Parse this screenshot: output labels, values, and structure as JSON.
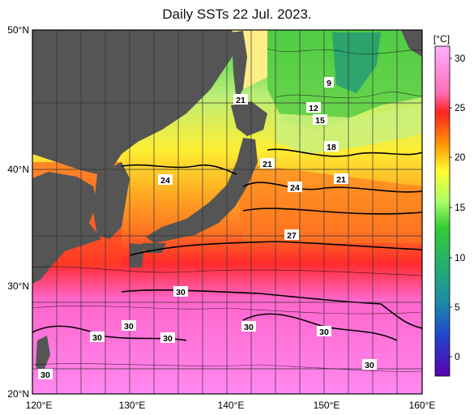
{
  "title": "Daily SSTs 22 Jul. 2023.",
  "colorbar": {
    "unit": "[°C]",
    "ticks": [
      "30",
      "25",
      "20",
      "15",
      "10",
      "5",
      "0"
    ],
    "stops": [
      "#ff9cff",
      "#ff3333",
      "#ff8800",
      "#ffff00",
      "#33cc33",
      "#33aaaa",
      "#3333cc",
      "#5500aa"
    ]
  },
  "axes": {
    "lat_ticks": [
      "50°N",
      "40°N",
      "30°N",
      "20°N"
    ],
    "lon_ticks": [
      "120°E",
      "130°E",
      "140°E",
      "150°E",
      "160°E"
    ]
  },
  "contour_labels": [
    "9",
    "12",
    "15",
    "18",
    "21",
    "21",
    "21",
    "24",
    "24",
    "27",
    "30",
    "30",
    "30",
    "30",
    "30",
    "30",
    "30",
    "30"
  ],
  "colors": {
    "land": "#555555",
    "frame": "#000000"
  }
}
